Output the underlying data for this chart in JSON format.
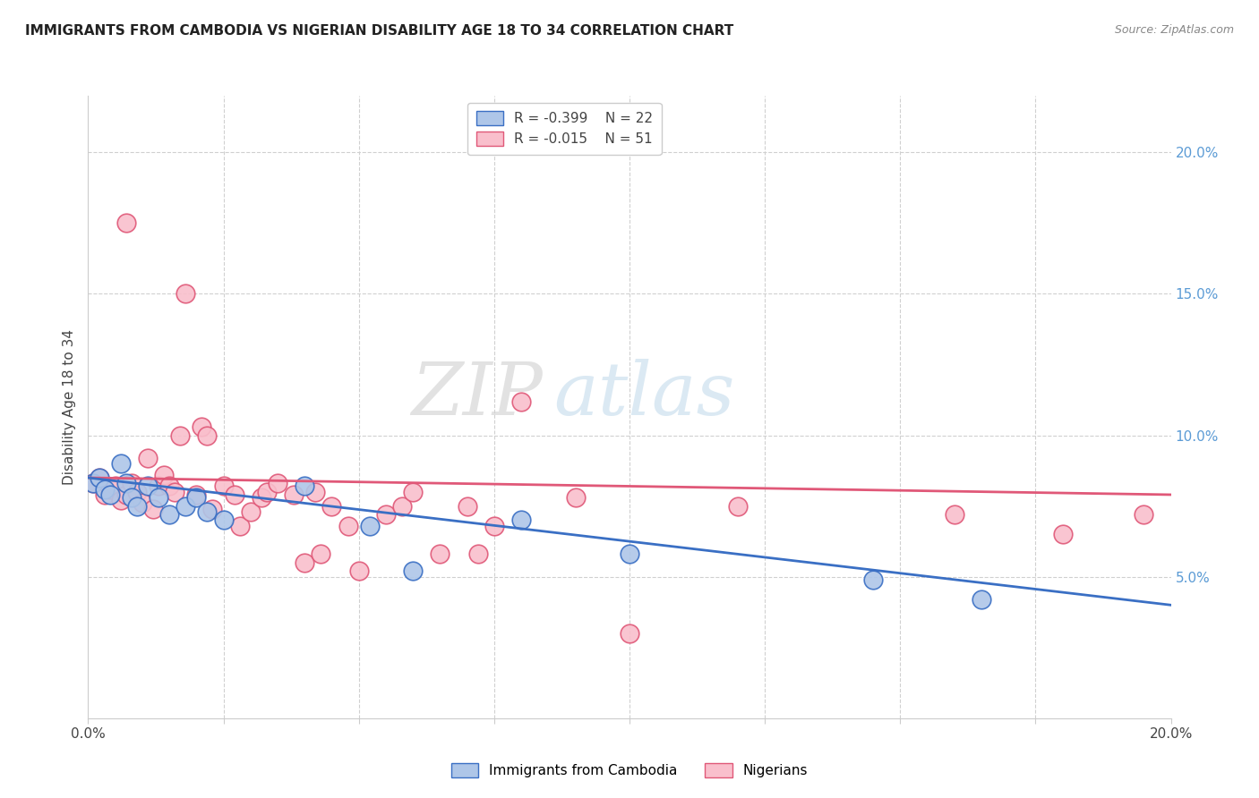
{
  "title": "IMMIGRANTS FROM CAMBODIA VS NIGERIAN DISABILITY AGE 18 TO 34 CORRELATION CHART",
  "source": "Source: ZipAtlas.com",
  "ylabel": "Disability Age 18 to 34",
  "xlim": [
    0.0,
    0.2
  ],
  "ylim": [
    0.0,
    0.22
  ],
  "cambodia_color": "#aec6e8",
  "nigerian_color": "#f9bfcc",
  "line_cambodia_color": "#3a6fc4",
  "line_nigerian_color": "#e05878",
  "legend_r_cambodia": "R = -0.399",
  "legend_n_cambodia": "N = 22",
  "legend_r_nigerian": "R = -0.015",
  "legend_n_nigerian": "N = 51",
  "watermark_zip": "ZIP",
  "watermark_atlas": "atlas",
  "cambodia_x": [
    0.001,
    0.002,
    0.003,
    0.004,
    0.006,
    0.007,
    0.008,
    0.009,
    0.011,
    0.013,
    0.015,
    0.018,
    0.02,
    0.022,
    0.025,
    0.04,
    0.052,
    0.06,
    0.08,
    0.1,
    0.145,
    0.165
  ],
  "cambodia_y": [
    0.083,
    0.085,
    0.081,
    0.079,
    0.09,
    0.083,
    0.078,
    0.075,
    0.082,
    0.078,
    0.072,
    0.075,
    0.078,
    0.073,
    0.07,
    0.082,
    0.068,
    0.052,
    0.07,
    0.058,
    0.049,
    0.042
  ],
  "nigerian_x": [
    0.001,
    0.002,
    0.003,
    0.004,
    0.005,
    0.006,
    0.007,
    0.007,
    0.008,
    0.009,
    0.01,
    0.011,
    0.012,
    0.013,
    0.014,
    0.015,
    0.016,
    0.017,
    0.018,
    0.02,
    0.021,
    0.022,
    0.023,
    0.025,
    0.027,
    0.028,
    0.03,
    0.032,
    0.033,
    0.035,
    0.038,
    0.04,
    0.042,
    0.043,
    0.045,
    0.048,
    0.05,
    0.055,
    0.058,
    0.06,
    0.065,
    0.07,
    0.072,
    0.075,
    0.08,
    0.09,
    0.1,
    0.12,
    0.16,
    0.18,
    0.195
  ],
  "nigerian_y": [
    0.083,
    0.085,
    0.079,
    0.081,
    0.082,
    0.077,
    0.079,
    0.175,
    0.083,
    0.08,
    0.076,
    0.092,
    0.074,
    0.082,
    0.086,
    0.082,
    0.08,
    0.1,
    0.15,
    0.079,
    0.103,
    0.1,
    0.074,
    0.082,
    0.079,
    0.068,
    0.073,
    0.078,
    0.08,
    0.083,
    0.079,
    0.055,
    0.08,
    0.058,
    0.075,
    0.068,
    0.052,
    0.072,
    0.075,
    0.08,
    0.058,
    0.075,
    0.058,
    0.068,
    0.112,
    0.078,
    0.03,
    0.075,
    0.072,
    0.065,
    0.072
  ]
}
